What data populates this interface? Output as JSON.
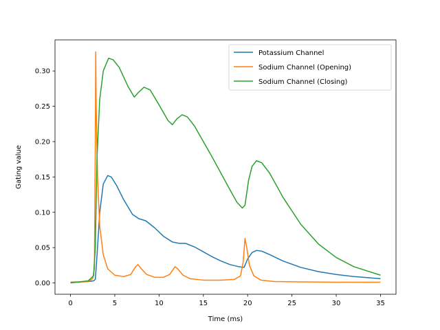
{
  "chart_data": {
    "type": "line",
    "xlabel": "Time (ms)",
    "ylabel": "Gating value",
    "xlim": [
      -1.75,
      36.75
    ],
    "ylim": [
      -0.016,
      0.344
    ],
    "xticks": [
      0,
      5,
      10,
      15,
      20,
      25,
      30,
      35
    ],
    "xtick_labels": [
      "0",
      "5",
      "10",
      "15",
      "20",
      "25",
      "30",
      "35"
    ],
    "yticks": [
      0.0,
      0.05,
      0.1,
      0.15,
      0.2,
      0.25,
      0.3
    ],
    "ytick_labels": [
      "0.00",
      "0.05",
      "0.10",
      "0.15",
      "0.20",
      "0.25",
      "0.30"
    ],
    "grid": false,
    "legend_position": "upper right",
    "series": [
      {
        "name": "Potassium Channel",
        "color": "#1f77b4",
        "points": [
          [
            0,
            0.001
          ],
          [
            1,
            0.0015
          ],
          [
            2,
            0.002
          ],
          [
            2.6,
            0.003
          ],
          [
            2.8,
            0.005
          ],
          [
            3.0,
            0.04
          ],
          [
            3.3,
            0.1
          ],
          [
            3.7,
            0.14
          ],
          [
            4.2,
            0.152
          ],
          [
            4.6,
            0.15
          ],
          [
            5.2,
            0.138
          ],
          [
            6,
            0.118
          ],
          [
            7,
            0.097
          ],
          [
            7.7,
            0.091
          ],
          [
            8.5,
            0.088
          ],
          [
            9.5,
            0.078
          ],
          [
            10.5,
            0.066
          ],
          [
            11.5,
            0.058
          ],
          [
            12.3,
            0.056
          ],
          [
            13,
            0.056
          ],
          [
            14,
            0.051
          ],
          [
            15,
            0.044
          ],
          [
            16,
            0.037
          ],
          [
            17,
            0.031
          ],
          [
            18,
            0.026
          ],
          [
            19,
            0.023
          ],
          [
            19.6,
            0.022
          ],
          [
            20,
            0.034
          ],
          [
            20.5,
            0.043
          ],
          [
            21,
            0.046
          ],
          [
            21.6,
            0.045
          ],
          [
            22.5,
            0.04
          ],
          [
            24,
            0.031
          ],
          [
            26,
            0.022
          ],
          [
            28,
            0.016
          ],
          [
            30,
            0.012
          ],
          [
            32,
            0.009
          ],
          [
            35,
            0.006
          ]
        ]
      },
      {
        "name": "Sodium Channel (Opening)",
        "color": "#ff7f0e",
        "points": [
          [
            0,
            0.0005
          ],
          [
            1,
            0.001
          ],
          [
            2,
            0.002
          ],
          [
            2.5,
            0.006
          ],
          [
            2.7,
            0.02
          ],
          [
            2.8,
            0.2
          ],
          [
            2.85,
            0.327
          ],
          [
            2.9,
            0.25
          ],
          [
            3.05,
            0.15
          ],
          [
            3.3,
            0.08
          ],
          [
            3.7,
            0.04
          ],
          [
            4.2,
            0.02
          ],
          [
            5,
            0.011
          ],
          [
            6,
            0.009
          ],
          [
            6.8,
            0.012
          ],
          [
            7.3,
            0.022
          ],
          [
            7.6,
            0.026
          ],
          [
            8.0,
            0.02
          ],
          [
            8.6,
            0.012
          ],
          [
            9.5,
            0.008
          ],
          [
            10.5,
            0.008
          ],
          [
            11.2,
            0.012
          ],
          [
            11.8,
            0.023
          ],
          [
            12.1,
            0.02
          ],
          [
            12.7,
            0.011
          ],
          [
            13.5,
            0.006
          ],
          [
            15,
            0.004
          ],
          [
            17,
            0.004
          ],
          [
            18.5,
            0.005
          ],
          [
            19.2,
            0.01
          ],
          [
            19.5,
            0.03
          ],
          [
            19.7,
            0.063
          ],
          [
            19.9,
            0.05
          ],
          [
            20.2,
            0.025
          ],
          [
            20.7,
            0.01
          ],
          [
            21.5,
            0.004
          ],
          [
            23,
            0.002
          ],
          [
            26,
            0.0015
          ],
          [
            30,
            0.001
          ],
          [
            35,
            0.001
          ]
        ]
      },
      {
        "name": "Sodium Channel (Closing)",
        "color": "#2ca02c",
        "points": [
          [
            0,
            0.0
          ],
          [
            1,
            0.0015
          ],
          [
            2,
            0.003
          ],
          [
            2.6,
            0.01
          ],
          [
            2.8,
            0.05
          ],
          [
            3.0,
            0.18
          ],
          [
            3.3,
            0.26
          ],
          [
            3.7,
            0.3
          ],
          [
            4.3,
            0.318
          ],
          [
            4.8,
            0.316
          ],
          [
            5.5,
            0.305
          ],
          [
            6.5,
            0.278
          ],
          [
            7.2,
            0.263
          ],
          [
            7.7,
            0.27
          ],
          [
            8.3,
            0.277
          ],
          [
            9,
            0.273
          ],
          [
            10,
            0.252
          ],
          [
            11,
            0.23
          ],
          [
            11.5,
            0.224
          ],
          [
            12,
            0.232
          ],
          [
            12.6,
            0.238
          ],
          [
            13.2,
            0.235
          ],
          [
            14,
            0.222
          ],
          [
            15,
            0.2
          ],
          [
            16,
            0.178
          ],
          [
            17,
            0.155
          ],
          [
            18,
            0.132
          ],
          [
            18.8,
            0.114
          ],
          [
            19.4,
            0.106
          ],
          [
            19.7,
            0.11
          ],
          [
            20.1,
            0.145
          ],
          [
            20.5,
            0.165
          ],
          [
            21,
            0.173
          ],
          [
            21.6,
            0.17
          ],
          [
            22.5,
            0.155
          ],
          [
            24,
            0.121
          ],
          [
            26,
            0.083
          ],
          [
            28,
            0.055
          ],
          [
            30,
            0.036
          ],
          [
            32,
            0.023
          ],
          [
            35,
            0.011
          ]
        ]
      }
    ]
  }
}
